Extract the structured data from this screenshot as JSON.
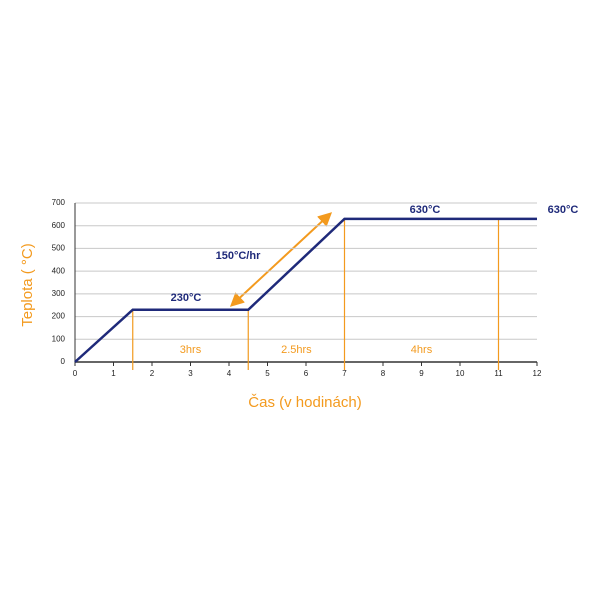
{
  "chart_data": {
    "type": "line",
    "x_label": "Čas (v hodinách)",
    "y_label": "Teplota ( °C)",
    "x": [
      0,
      1.5,
      4.5,
      7,
      12
    ],
    "series": [
      {
        "name": "Teplota",
        "color": "#1f2a7a",
        "values": [
          0,
          230,
          230,
          630,
          630
        ]
      }
    ],
    "xlim": [
      0,
      12
    ],
    "xticks": [
      0,
      1,
      2,
      3,
      4,
      5,
      6,
      7,
      8,
      9,
      10,
      11,
      12
    ],
    "ylim": [
      0,
      700
    ],
    "yticks": [
      0,
      100,
      200,
      300,
      400,
      500,
      600,
      700
    ],
    "grid": true,
    "markers": [
      1.5,
      4.5,
      7,
      11
    ],
    "marker_color": "#f39a1e",
    "intervals": [
      "3hrs",
      "2.5hrs",
      "4hrs"
    ],
    "annotations": [
      "230°C",
      "630°C",
      "630°C",
      "150°C/hr"
    ]
  }
}
